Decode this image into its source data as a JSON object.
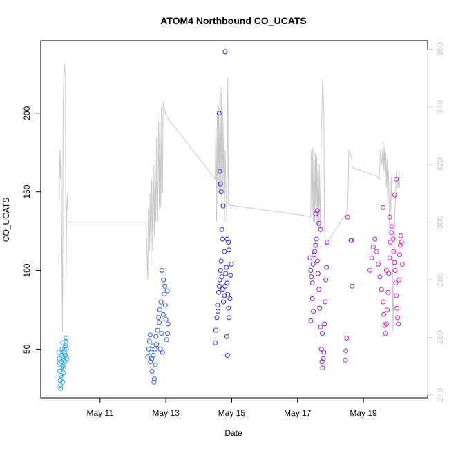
{
  "chart_data": {
    "type": "scatter",
    "title": "ATOM4 Northbound CO_UCATS",
    "xlabel": "Date",
    "ylabel": "CO_UCATS",
    "x_ticks": [
      "May 11",
      "May 13",
      "May 15",
      "May 17",
      "May 19"
    ],
    "y_ticks": [
      "50",
      "100",
      "150",
      "200"
    ],
    "y2_ticks": [
      "240",
      "260",
      "280",
      "300",
      "320",
      "340",
      "360"
    ],
    "xlim": [
      9.2,
      20.95
    ],
    "ylim": [
      19,
      246
    ],
    "y2lim": [
      239,
      363
    ],
    "grid": false,
    "colors": {
      "scatter_start": "#2aa6ee",
      "scatter_mid": "#2a1ee0",
      "scatter_end": "#ee14c8",
      "right_axis_line": "#c8c8c8",
      "axes": "#000000"
    },
    "series": [
      {
        "type": "scatter",
        "points": [
          [
            9.75,
            48
          ],
          [
            9.76,
            44
          ],
          [
            9.77,
            41
          ],
          [
            9.78,
            36
          ],
          [
            9.79,
            30
          ],
          [
            9.8,
            27
          ],
          [
            9.8,
            25
          ],
          [
            9.81,
            33
          ],
          [
            9.82,
            38
          ],
          [
            9.83,
            42
          ],
          [
            9.84,
            46
          ],
          [
            9.85,
            50
          ],
          [
            9.86,
            54
          ],
          [
            9.87,
            45
          ],
          [
            9.88,
            39
          ],
          [
            9.89,
            35
          ],
          [
            9.9,
            43
          ],
          [
            9.91,
            48
          ],
          [
            9.92,
            51
          ],
          [
            9.93,
            47
          ],
          [
            9.94,
            42
          ],
          [
            9.95,
            52
          ],
          [
            9.96,
            55
          ],
          [
            9.97,
            57
          ],
          [
            9.98,
            50
          ],
          [
            9.99,
            44
          ],
          [
            9.86,
            29
          ],
          [
            9.84,
            32
          ],
          [
            9.9,
            38
          ],
          [
            9.95,
            46
          ],
          [
            12.45,
            45
          ],
          [
            12.48,
            50
          ],
          [
            12.5,
            55
          ],
          [
            12.52,
            59
          ],
          [
            12.55,
            48
          ],
          [
            12.57,
            44
          ],
          [
            12.6,
            52
          ],
          [
            12.62,
            46
          ],
          [
            12.64,
            29
          ],
          [
            12.65,
            31
          ],
          [
            12.67,
            50
          ],
          [
            12.7,
            58
          ],
          [
            12.72,
            53
          ],
          [
            12.75,
            62
          ],
          [
            12.78,
            70
          ],
          [
            12.8,
            67
          ],
          [
            12.82,
            75
          ],
          [
            12.85,
            80
          ],
          [
            12.87,
            60
          ],
          [
            12.9,
            48
          ],
          [
            12.92,
            72
          ],
          [
            12.95,
            85
          ],
          [
            12.97,
            90
          ],
          [
            13.0,
            69
          ],
          [
            13.02,
            56
          ],
          [
            13.05,
            60
          ],
          [
            13.07,
            66
          ],
          [
            12.58,
            36
          ],
          [
            12.68,
            40
          ],
          [
            12.88,
            100
          ],
          [
            12.93,
            94
          ],
          [
            12.98,
            78
          ],
          [
            13.04,
            87
          ],
          [
            12.53,
            42
          ],
          [
            12.83,
            50
          ],
          [
            14.5,
            54
          ],
          [
            14.52,
            62
          ],
          [
            14.55,
            70
          ],
          [
            14.57,
            78
          ],
          [
            14.6,
            86
          ],
          [
            14.62,
            90
          ],
          [
            14.64,
            94
          ],
          [
            14.66,
            100
          ],
          [
            14.68,
            106
          ],
          [
            14.7,
            96
          ],
          [
            14.72,
            88
          ],
          [
            14.75,
            80
          ],
          [
            14.78,
            84
          ],
          [
            14.8,
            90
          ],
          [
            14.82,
            98
          ],
          [
            14.84,
            102
          ],
          [
            14.86,
            92
          ],
          [
            14.88,
            85
          ],
          [
            14.9,
            76
          ],
          [
            14.92,
            70
          ],
          [
            14.95,
            82
          ],
          [
            14.97,
            97
          ],
          [
            14.99,
            104
          ],
          [
            14.62,
            200
          ],
          [
            14.64,
            163
          ],
          [
            14.66,
            155
          ],
          [
            14.7,
            126
          ],
          [
            14.72,
            120
          ],
          [
            14.74,
            141
          ],
          [
            14.8,
            239
          ],
          [
            14.85,
            58
          ],
          [
            14.87,
            46
          ],
          [
            14.9,
            118
          ],
          [
            14.92,
            113
          ],
          [
            14.58,
            74
          ],
          [
            14.68,
            150
          ],
          [
            14.78,
            112
          ],
          [
            14.86,
            120
          ],
          [
            17.38,
            108
          ],
          [
            17.4,
            100
          ],
          [
            17.42,
            96
          ],
          [
            17.45,
            92
          ],
          [
            17.47,
            104
          ],
          [
            17.5,
            110
          ],
          [
            17.52,
            112
          ],
          [
            17.55,
            116
          ],
          [
            17.57,
            120
          ],
          [
            17.6,
            106
          ],
          [
            17.62,
            98
          ],
          [
            17.65,
            88
          ],
          [
            17.67,
            76
          ],
          [
            17.7,
            64
          ],
          [
            17.72,
            50
          ],
          [
            17.74,
            42
          ],
          [
            17.76,
            38
          ],
          [
            17.78,
            44
          ],
          [
            17.8,
            48
          ],
          [
            17.82,
            66
          ],
          [
            17.84,
            80
          ],
          [
            17.86,
            94
          ],
          [
            17.88,
            102
          ],
          [
            17.9,
            118
          ],
          [
            17.45,
            82
          ],
          [
            17.48,
            74
          ],
          [
            17.55,
            136
          ],
          [
            17.6,
            138
          ],
          [
            17.65,
            130
          ],
          [
            17.7,
            126
          ],
          [
            17.75,
            60
          ],
          [
            17.4,
            68
          ],
          [
            18.45,
            43
          ],
          [
            18.47,
            49
          ],
          [
            18.49,
            57
          ],
          [
            18.52,
            134
          ],
          [
            18.62,
            119
          ],
          [
            18.64,
            119
          ],
          [
            18.66,
            90
          ],
          [
            19.2,
            100
          ],
          [
            19.25,
            108
          ],
          [
            19.3,
            115
          ],
          [
            19.35,
            120
          ],
          [
            19.4,
            112
          ],
          [
            19.45,
            104
          ],
          [
            19.5,
            96
          ],
          [
            19.55,
            88
          ],
          [
            19.6,
            80
          ],
          [
            19.62,
            72
          ],
          [
            19.65,
            65
          ],
          [
            19.67,
            60
          ],
          [
            19.7,
            66
          ],
          [
            19.72,
            75
          ],
          [
            19.75,
            86
          ],
          [
            19.77,
            98
          ],
          [
            19.8,
            108
          ],
          [
            19.82,
            118
          ],
          [
            19.85,
            124
          ],
          [
            19.87,
            128
          ],
          [
            19.9,
            120
          ],
          [
            19.92,
            112
          ],
          [
            19.94,
            105
          ],
          [
            19.96,
            100
          ],
          [
            19.98,
            92
          ],
          [
            20.0,
            84
          ],
          [
            20.02,
            76
          ],
          [
            20.04,
            70
          ],
          [
            20.06,
            66
          ],
          [
            20.08,
            94
          ],
          [
            20.1,
            110
          ],
          [
            20.12,
            116
          ],
          [
            20.14,
            122
          ],
          [
            20.16,
            118
          ],
          [
            20.18,
            104
          ],
          [
            19.7,
            100
          ],
          [
            19.6,
            140
          ],
          [
            19.95,
            148
          ],
          [
            20.0,
            158
          ],
          [
            19.8,
            134
          ]
        ]
      },
      {
        "type": "line",
        "axis": "right",
        "points": [
          [
            9.75,
            285
          ],
          [
            9.77,
            325
          ],
          [
            9.8,
            315
          ],
          [
            9.82,
            330
          ],
          [
            9.84,
            290
          ],
          [
            9.86,
            262
          ],
          [
            9.88,
            340
          ],
          [
            9.9,
            350
          ],
          [
            9.92,
            355
          ],
          [
            9.95,
            350
          ],
          [
            9.97,
            280
          ],
          [
            9.99,
            305
          ],
          [
            10.01,
            310
          ],
          [
            10.03,
            300
          ],
          [
            12.4,
            300
          ],
          [
            12.45,
            280
          ],
          [
            12.47,
            305
          ],
          [
            12.5,
            290
          ],
          [
            12.52,
            310
          ],
          [
            12.55,
            285
          ],
          [
            12.57,
            315
          ],
          [
            12.6,
            290
          ],
          [
            12.62,
            320
          ],
          [
            12.65,
            295
          ],
          [
            12.67,
            325
          ],
          [
            12.7,
            300
          ],
          [
            12.72,
            330
          ],
          [
            12.75,
            300
          ],
          [
            12.78,
            335
          ],
          [
            12.8,
            305
          ],
          [
            12.82,
            338
          ],
          [
            12.85,
            305
          ],
          [
            12.87,
            340
          ],
          [
            12.9,
            310
          ],
          [
            12.92,
            342
          ],
          [
            12.95,
            340
          ],
          [
            13.0,
            337
          ],
          [
            14.5,
            315
          ],
          [
            14.52,
            335
          ],
          [
            14.54,
            300
          ],
          [
            14.56,
            338
          ],
          [
            14.58,
            305
          ],
          [
            14.6,
            340
          ],
          [
            14.62,
            310
          ],
          [
            14.64,
            345
          ],
          [
            14.66,
            310
          ],
          [
            14.68,
            347
          ],
          [
            14.7,
            305
          ],
          [
            14.72,
            340
          ],
          [
            14.74,
            310
          ],
          [
            14.76,
            335
          ],
          [
            14.78,
            300
          ],
          [
            14.8,
            325
          ],
          [
            14.85,
            300
          ],
          [
            14.88,
            350
          ],
          [
            14.9,
            306
          ],
          [
            17.4,
            302
          ],
          [
            17.42,
            325
          ],
          [
            17.44,
            300
          ],
          [
            17.46,
            326
          ],
          [
            17.48,
            300
          ],
          [
            17.5,
            325
          ],
          [
            17.52,
            300
          ],
          [
            17.54,
            324
          ],
          [
            17.56,
            300
          ],
          [
            17.58,
            323
          ],
          [
            17.6,
            298
          ],
          [
            17.62,
            322
          ],
          [
            17.64,
            298
          ],
          [
            17.66,
            320
          ],
          [
            17.68,
            296
          ],
          [
            17.72,
            330
          ],
          [
            17.76,
            350
          ],
          [
            17.8,
            337
          ],
          [
            17.82,
            296
          ],
          [
            17.85,
            292
          ],
          [
            18.52,
            304
          ],
          [
            18.56,
            325
          ],
          [
            18.65,
            322
          ],
          [
            18.66,
            319
          ],
          [
            19.4,
            316
          ],
          [
            19.48,
            315
          ],
          [
            19.52,
            325
          ],
          [
            19.56,
            320
          ],
          [
            19.6,
            328
          ],
          [
            19.62,
            318
          ],
          [
            19.64,
            326
          ],
          [
            19.66,
            316
          ],
          [
            19.68,
            324
          ],
          [
            19.7,
            312
          ],
          [
            19.72,
            322
          ],
          [
            19.74,
            306
          ],
          [
            19.76,
            318
          ],
          [
            19.8,
            296
          ],
          [
            19.85,
            316
          ],
          [
            19.9,
            262
          ],
          [
            19.95,
            300
          ],
          [
            20.0,
            318
          ],
          [
            20.05,
            312
          ],
          [
            20.08,
            318
          ],
          [
            20.1,
            312
          ]
        ]
      }
    ]
  }
}
